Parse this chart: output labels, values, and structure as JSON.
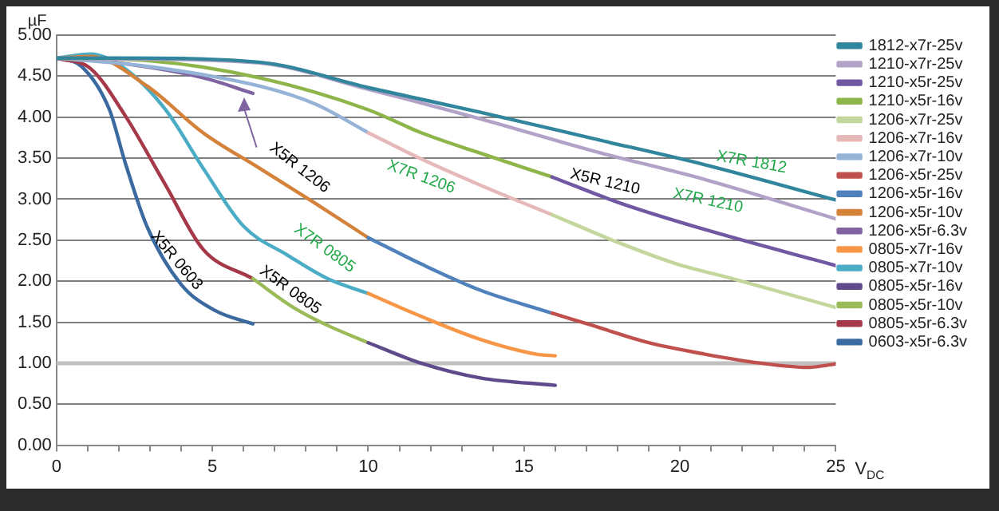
{
  "chart_data": {
    "type": "line",
    "xlabel": "V$_{DC}$",
    "ylabel": "µF",
    "legend": "right",
    "grid": "y",
    "marker": "none",
    "line_style": "solid",
    "xlim": [
      0,
      25
    ],
    "ylim": [
      0,
      5
    ],
    "xticks": [
      0,
      {
        "value": 1,
        "label": null
      },
      {
        "value": 2,
        "label": null
      },
      {
        "value": 3,
        "label": null
      },
      {
        "value": 4,
        "label": null
      },
      5,
      {
        "value": 6,
        "label": null
      },
      {
        "value": 7,
        "label": null
      },
      {
        "value": 8,
        "label": null
      },
      {
        "value": 9,
        "label": null
      },
      10,
      {
        "value": 11,
        "label": null
      },
      {
        "value": 12,
        "label": null
      },
      {
        "value": 13,
        "label": null
      },
      {
        "value": 14,
        "label": null
      },
      15,
      {
        "value": 16,
        "label": null
      },
      {
        "value": 17,
        "label": null
      },
      {
        "value": 18,
        "label": null
      },
      {
        "value": 19,
        "label": null
      },
      20,
      {
        "value": 21,
        "label": null
      },
      {
        "value": 22,
        "label": null
      },
      {
        "value": 23,
        "label": null
      },
      {
        "value": 24,
        "label": null
      },
      25
    ],
    "yticks": [
      {
        "value": 0,
        "label": "0.00"
      },
      {
        "value": 0.5,
        "label": "0.50"
      },
      {
        "value": 1,
        "label": "1.00"
      },
      {
        "value": 1.5,
        "label": "1.50"
      },
      {
        "value": 2,
        "label": "2.00"
      },
      {
        "value": 2.5,
        "label": "2.50"
      },
      {
        "value": 3,
        "label": "3.00"
      },
      {
        "value": 3.5,
        "label": "3.50"
      },
      {
        "value": 4,
        "label": "4.00"
      },
      {
        "value": 4.5,
        "label": "4.50"
      },
      {
        "value": 5,
        "label": "5.00"
      }
    ],
    "ref_lines": [
      {
        "axis": "y",
        "value": 1,
        "color": "#c0c0c0"
      }
    ],
    "series": [
      {
        "name": "1812-x7r-25v",
        "color": "#31859c",
        "x": [
          0,
          2,
          6.5,
          10,
          13.6,
          17.2,
          20.8,
          25
        ],
        "values": [
          4.72,
          4.72,
          4.67,
          4.36,
          4.06,
          3.74,
          3.42,
          2.99
        ]
      },
      {
        "name": "1210-x7r-25v",
        "color": "#b3a2c7",
        "x": [
          0,
          2,
          6.5,
          10,
          13.6,
          17.2,
          20.8,
          25
        ],
        "values": [
          4.72,
          4.71,
          4.66,
          4.34,
          3.98,
          3.59,
          3.24,
          2.76
        ]
      },
      {
        "name": "1210-x5r-25v",
        "color": "#7058a3",
        "x": [
          15.9,
          18.1,
          20.8,
          25
        ],
        "values": [
          3.27,
          2.95,
          2.63,
          2.19
        ]
      },
      {
        "name": "1210-x5r-16v",
        "color": "#8db54a",
        "x": [
          0,
          2.9,
          6.5,
          10,
          11.7,
          13.6,
          15.9
        ],
        "values": [
          4.72,
          4.69,
          4.48,
          4.09,
          3.81,
          3.56,
          3.27
        ]
      },
      {
        "name": "1206-x7r-25v",
        "color": "#c3d69b",
        "x": [
          15.9,
          18.1,
          19.9,
          21.7,
          25
        ],
        "values": [
          2.81,
          2.46,
          2.21,
          2.03,
          1.68
        ]
      },
      {
        "name": "1206-x7r-16v",
        "color": "#e6b9b8",
        "x": [
          10,
          11.7,
          13.6,
          15.9
        ],
        "values": [
          3.81,
          3.49,
          3.17,
          2.81
        ]
      },
      {
        "name": "1206-x7r-10v",
        "color": "#95b3d7",
        "x": [
          0,
          2.9,
          6.5,
          8.3,
          10
        ],
        "values": [
          4.72,
          4.62,
          4.38,
          4.16,
          3.81
        ]
      },
      {
        "name": "1206-x5r-25v",
        "color": "#c0504d",
        "x": [
          15.9,
          17.2,
          19,
          20.8,
          22.6,
          24.1,
          25
        ],
        "values": [
          1.61,
          1.46,
          1.25,
          1.11,
          1.0,
          0.95,
          0.99
        ]
      },
      {
        "name": "1206-x5r-16v",
        "color": "#4f81bd",
        "x": [
          10,
          11.7,
          13.6,
          15.9
        ],
        "values": [
          2.53,
          2.21,
          1.89,
          1.61
        ]
      },
      {
        "name": "1206-x5r-10v",
        "color": "#d4823a",
        "x": [
          0,
          1.1,
          2.9,
          4.7,
          6.5,
          8.3,
          10
        ],
        "values": [
          4.72,
          4.74,
          4.38,
          3.81,
          3.38,
          2.95,
          2.53
        ]
      },
      {
        "name": "1206-x5r-6.3v",
        "color": "#8064a2",
        "x": [
          0,
          2,
          4.7,
          6.3
        ],
        "values": [
          4.72,
          4.66,
          4.48,
          4.29
        ]
      },
      {
        "name": "0805-x7r-16v",
        "color": "#f79646",
        "x": [
          10,
          11.7,
          13.6,
          15.4,
          16
        ],
        "values": [
          1.85,
          1.57,
          1.29,
          1.11,
          1.09
        ]
      },
      {
        "name": "0805-x7r-10v",
        "color": "#4bacc6",
        "x": [
          0,
          1.1,
          2.2,
          3.5,
          4.7,
          6,
          7.4,
          8.7,
          10
        ],
        "values": [
          4.72,
          4.77,
          4.59,
          4.09,
          3.38,
          2.67,
          2.32,
          2.03,
          1.85
        ]
      },
      {
        "name": "0805-x5r-16v",
        "color": "#5f4b8b",
        "x": [
          10,
          11.7,
          13.6,
          16
        ],
        "values": [
          1.25,
          1.0,
          0.82,
          0.73
        ]
      },
      {
        "name": "0805-x5r-10v",
        "color": "#9bbb59",
        "x": [
          6.3,
          7.6,
          8.7,
          10
        ],
        "values": [
          2.03,
          1.68,
          1.46,
          1.25
        ]
      },
      {
        "name": "0805-x5r-6.3v",
        "color": "#a5394a",
        "x": [
          0,
          1.1,
          2.2,
          3.5,
          4.7,
          6.3
        ],
        "values": [
          4.72,
          4.59,
          4.02,
          3.17,
          2.39,
          2.03
        ]
      },
      {
        "name": "0603-x5r-6.3v",
        "color": "#3a6aa0",
        "x": [
          0,
          0.8,
          1.7,
          2.2,
          2.9,
          4,
          5.1,
          6.3
        ],
        "values": [
          4.72,
          4.62,
          4.09,
          3.45,
          2.67,
          1.96,
          1.64,
          1.48
        ]
      }
    ],
    "annotations": [
      "X5R 1206",
      "X7R 1206",
      "X5R 1210",
      "X7R 1812",
      "X7R 1210",
      "X7R 0805",
      "X5R 0805",
      "X5R 0603"
    ]
  }
}
